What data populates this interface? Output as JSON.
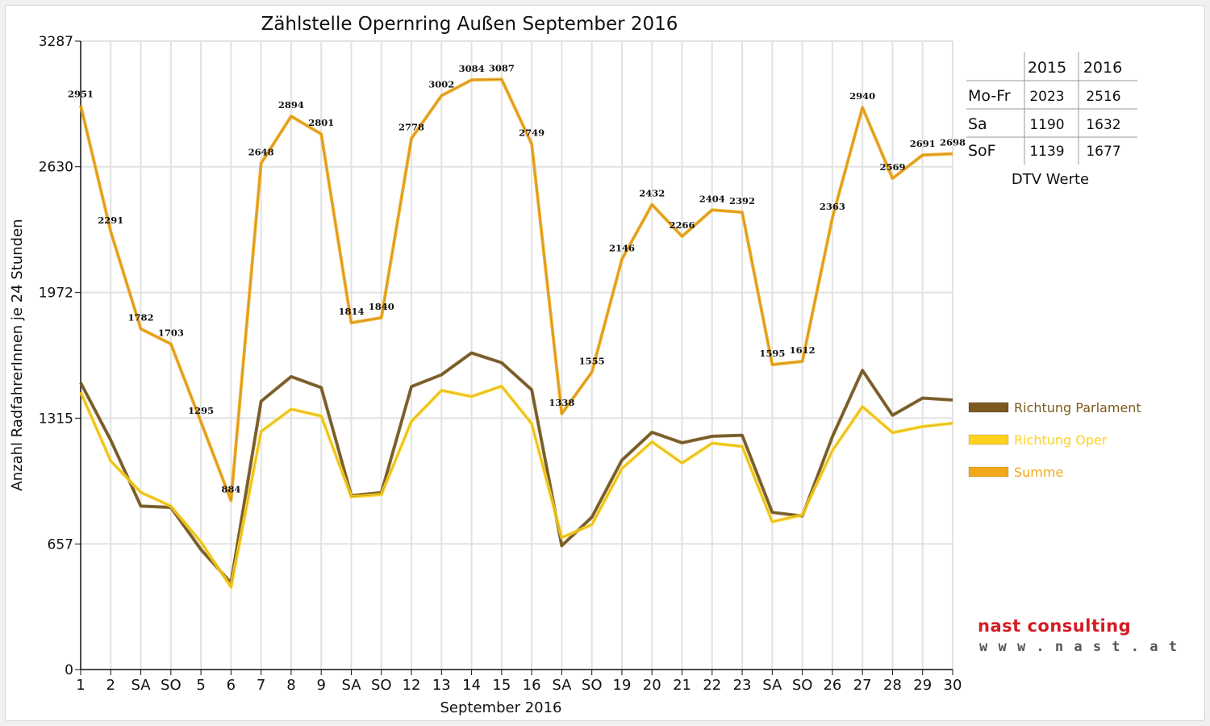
{
  "chart_data": {
    "type": "line",
    "title": "Zählstelle Opernring Außen September 2016",
    "xlabel": "September 2016",
    "ylabel": "Anzahl RadfahrerInnen je 24 Stunden",
    "ylim": [
      0,
      3287
    ],
    "yticks": [
      0,
      657,
      1315,
      1972,
      2630,
      3287
    ],
    "grid": true,
    "legend_position": "right",
    "categories": [
      "1",
      "2",
      "SA",
      "SO",
      "5",
      "6",
      "7",
      "8",
      "9",
      "SA",
      "SO",
      "12",
      "13",
      "14",
      "15",
      "16",
      "SA",
      "SO",
      "19",
      "20",
      "21",
      "22",
      "23",
      "SA",
      "SO",
      "26",
      "27",
      "28",
      "29",
      "30"
    ],
    "weekend_categories": [
      "SO"
    ],
    "weekend_color": "#ff0000",
    "series": [
      {
        "name": "Richtung Parlament",
        "color": "#7a5a1e",
        "values": [
          1500,
          1200,
          855,
          848,
          628,
          453,
          1403,
          1532,
          1475,
          910,
          925,
          1480,
          1542,
          1656,
          1605,
          1463,
          648,
          797,
          1095,
          1241,
          1186,
          1220,
          1225,
          822,
          803,
          1218,
          1565,
          1330,
          1420,
          1410
        ]
      },
      {
        "name": "Richtung Oper",
        "color": "#ffd21e",
        "values": [
          1451,
          1091,
          927,
          855,
          667,
          431,
          1245,
          1362,
          1326,
          904,
          915,
          1298,
          1460,
          1428,
          1482,
          1286,
          690,
          758,
          1051,
          1191,
          1080,
          1184,
          1167,
          773,
          809,
          1145,
          1375,
          1239,
          1271,
          1288
        ]
      },
      {
        "name": "Summe",
        "color": "#f2a818",
        "values": [
          2951,
          2291,
          1782,
          1703,
          1295,
          884,
          2648,
          2894,
          2801,
          1814,
          1840,
          2778,
          3002,
          3084,
          3087,
          2749,
          1338,
          1555,
          2146,
          2432,
          2266,
          2404,
          2392,
          1595,
          1612,
          2363,
          2940,
          2569,
          2691,
          2698
        ]
      }
    ],
    "data_labels_series": "Summe",
    "data_labels": [
      "2951",
      "2291",
      "1782",
      "1703",
      "1295",
      "884",
      "2648",
      "2894",
      "2801",
      "1814",
      "1840",
      "2778",
      "3002",
      "3084",
      "3087",
      "2749",
      "1338",
      "1555",
      "2146",
      "2432",
      "2266",
      "2404",
      "2392",
      "1595",
      "1612",
      "2363",
      "2940",
      "2569",
      "2691",
      "2698"
    ]
  },
  "dtv_table": {
    "headers": [
      "",
      "2015",
      "2016"
    ],
    "rows": [
      {
        "label": "Mo-Fr",
        "v2015": "2023",
        "v2016": "2516"
      },
      {
        "label": "Sa",
        "v2015": "1190",
        "v2016": "1632"
      },
      {
        "label": "SoF",
        "v2015": "1139",
        "v2016": "1677"
      }
    ],
    "caption": "DTV Werte"
  },
  "logo": {
    "name": "nast consulting",
    "url": "w w w . n a s t . a t"
  }
}
